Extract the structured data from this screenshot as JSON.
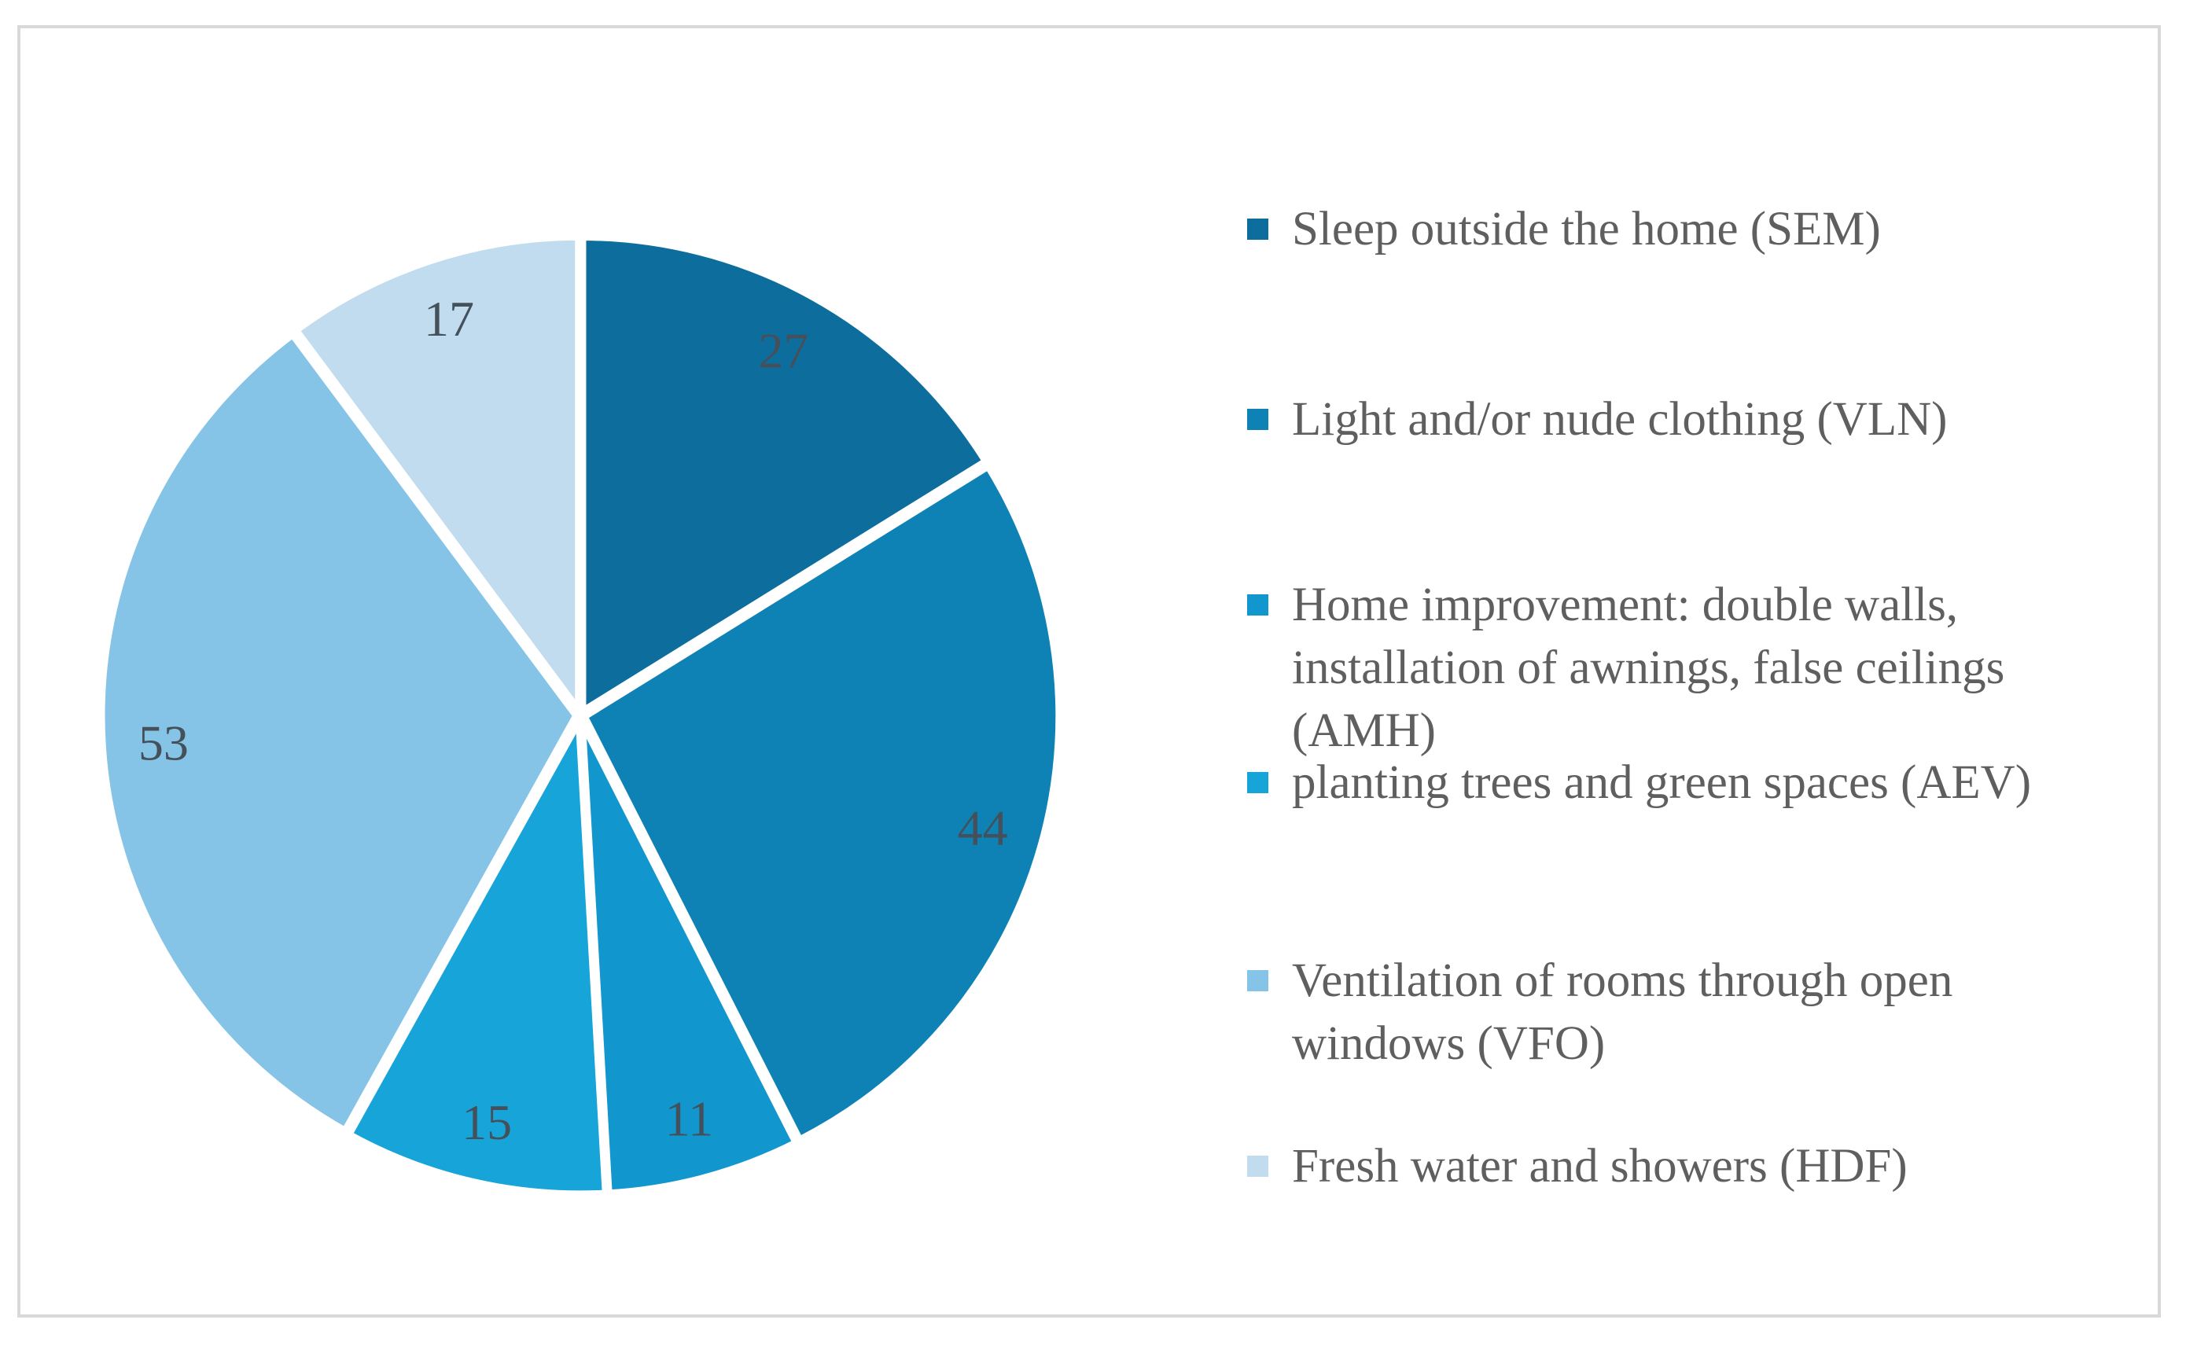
{
  "chart_data": {
    "type": "pie",
    "title": "",
    "legend_position": "right",
    "data_labels": "values",
    "start_angle_deg": 0,
    "direction": "clockwise",
    "slices": [
      {
        "code": "SEM",
        "label": "Sleep outside the home (SEM)",
        "value": 27,
        "color": "#0d6e9d"
      },
      {
        "code": "VLN",
        "label": "Light and/or nude clothing (VLN)",
        "value": 44,
        "color": "#0f82b5"
      },
      {
        "code": "AMH",
        "label": "Home improvement: double walls,\ninstallation of awnings, false ceilings\n(AMH)",
        "value": 11,
        "color": "#1197ce"
      },
      {
        "code": "AEV",
        "label": "planting trees and green spaces (AEV)",
        "value": 15,
        "color": "#17a4d9"
      },
      {
        "code": "VFO",
        "label": "Ventilation of rooms through open\nwindows (VFO)",
        "value": 53,
        "color": "#85c4e6"
      },
      {
        "code": "HDF",
        "label": "Fresh water and showers (HDF)",
        "value": 17,
        "color": "#c0dcee"
      }
    ],
    "value_label_color": "#44505a",
    "legend_text_color": "#5f5f5f",
    "frame_border_color": "#d9d9d9",
    "background_color": "#ffffff"
  }
}
